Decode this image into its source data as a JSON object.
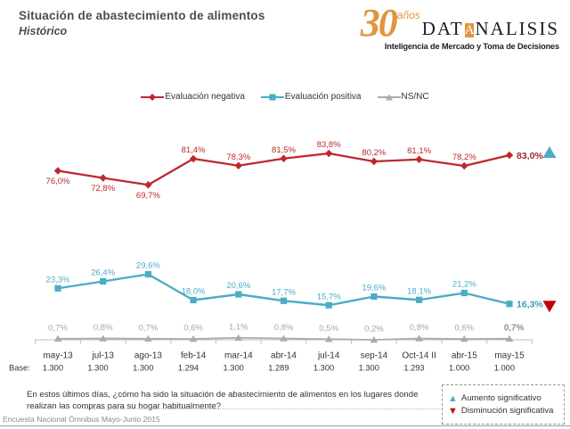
{
  "header": {
    "title": "Situación de abastecimiento de alimentos",
    "subtitle": "Histórico"
  },
  "logo": {
    "big_number": "30",
    "anos": "años",
    "name_part1": "DAT",
    "name_a": "A",
    "name_part2": "NALISIS",
    "tagline": "Inteligencia de Mercado y Toma de Decisiones",
    "dot": ".",
    "accent_color": "#e2953c"
  },
  "chart_data": {
    "type": "line",
    "title": "",
    "categories": [
      "may-13",
      "jul-13",
      "ago-13",
      "feb-14",
      "mar-14",
      "abr-14",
      "jul-14",
      "sep-14",
      "Oct-14 II",
      "abr-15",
      "may-15"
    ],
    "base_row": {
      "label": "Base:",
      "values": [
        "1.300",
        "1.300",
        "1.300",
        "1.294",
        "1.300",
        "1.289",
        "1.300",
        "1.300",
        "1.293",
        "1.000",
        "1.000"
      ]
    },
    "ylim": [
      0,
      100
    ],
    "grid": false,
    "legend_position": "top",
    "series": [
      {
        "name": "Evaluación negativa",
        "color": "#be282d",
        "end_color": "#9e2b35",
        "marker": "diamond",
        "line_width": 2.2,
        "values": [
          76.0,
          72.8,
          69.7,
          81.4,
          78.3,
          81.5,
          83.8,
          80.2,
          81.1,
          78.2,
          83.0
        ],
        "labels": [
          "76,0%",
          "72,8%",
          "69,7%",
          "81,4%",
          "78,3%",
          "81,5%",
          "83,8%",
          "80,2%",
          "81,1%",
          "78,2%",
          "83,0%"
        ],
        "label_pos": [
          "below",
          "below",
          "below",
          "above",
          "above",
          "above",
          "above",
          "above",
          "above",
          "above",
          "end"
        ]
      },
      {
        "name": "Evaluación positiva",
        "color": "#4bacc6",
        "end_color": "#35a0bd",
        "marker": "square",
        "line_width": 2.4,
        "values": [
          23.3,
          26.4,
          29.6,
          18.0,
          20.6,
          17.7,
          15.7,
          19.6,
          18.1,
          21.2,
          16.3
        ],
        "labels": [
          "23,3%",
          "26,4%",
          "29,6%",
          "18,0%",
          "20,6%",
          "17,7%",
          "15,7%",
          "19,6%",
          "18,1%",
          "21,2%",
          "16,3%"
        ],
        "label_pos": [
          "above",
          "above",
          "above",
          "above",
          "above",
          "above",
          "above",
          "above",
          "above",
          "above",
          "end"
        ]
      },
      {
        "name": "NS/NC",
        "color": "#ababab",
        "label_color": "#a6a6a6",
        "end_color": "#8f8f8f",
        "marker": "triangle",
        "line_width": 1.8,
        "values": [
          0.7,
          0.8,
          0.7,
          0.6,
          1.1,
          0.8,
          0.5,
          0.2,
          0.8,
          0.6,
          0.7
        ],
        "labels": [
          "0,7%",
          "0,8%",
          "0,7%",
          "0,6%",
          "1,1%",
          "0,8%",
          "0,5%",
          "0,2%",
          "0,8%",
          "0,6%",
          "0,7%"
        ],
        "label_pos": [
          "above",
          "above",
          "above",
          "above",
          "above",
          "above",
          "above",
          "above",
          "above",
          "above",
          "above-bold"
        ]
      }
    ],
    "annotations": [
      {
        "type": "triangle-up",
        "color": "#4bacc6",
        "series_index": 0
      },
      {
        "type": "triangle-down",
        "color": "#c00000",
        "series_index": 1
      }
    ],
    "axis_color": "#bfbfbf",
    "category_label_color": "#333333"
  },
  "footer": {
    "question": "En estos últimos días, ¿cómo ha sido la situación de abastecimiento de alimentos  en los lugares donde realizan las compras para su hogar habitualmente?",
    "source": "Encuesta Nacional Ómnibus Mayo-Junio 2015"
  },
  "significance_box": {
    "up": {
      "symbol": "▲",
      "label": "Aumento significativo",
      "color": "#4bacc6"
    },
    "down": {
      "symbol": "▼",
      "label": "Disminución significativa",
      "color": "#c00000"
    }
  }
}
